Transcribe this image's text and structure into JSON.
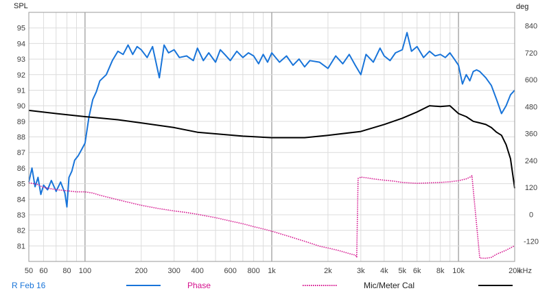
{
  "chart_data": {
    "type": "line",
    "title": "",
    "y_left_label": "SPL",
    "y_right_label": "deg",
    "x_unit_label": "kHz",
    "x_scale": "log",
    "xlim": [
      50,
      20000
    ],
    "ylim_left": [
      80,
      96
    ],
    "ylim_right": [
      -210,
      900
    ],
    "grid": true,
    "x_ticks": [
      {
        "value": 50,
        "label": "50"
      },
      {
        "value": 60,
        "label": "60"
      },
      {
        "value": 80,
        "label": "80"
      },
      {
        "value": 100,
        "label": "100"
      },
      {
        "value": 200,
        "label": "200"
      },
      {
        "value": 300,
        "label": "300"
      },
      {
        "value": 400,
        "label": "400"
      },
      {
        "value": 600,
        "label": "600"
      },
      {
        "value": 800,
        "label": "800"
      },
      {
        "value": 1000,
        "label": "1k"
      },
      {
        "value": 2000,
        "label": "2k"
      },
      {
        "value": 3000,
        "label": "3k"
      },
      {
        "value": 4000,
        "label": "4k"
      },
      {
        "value": 5000,
        "label": "5k"
      },
      {
        "value": 6000,
        "label": "6k"
      },
      {
        "value": 8000,
        "label": "8k"
      },
      {
        "value": 10000,
        "label": "10k"
      },
      {
        "value": 20000,
        "label": "20k"
      }
    ],
    "y_left_ticks": [
      81,
      82,
      83,
      84,
      85,
      86,
      87,
      88,
      89,
      90,
      91,
      92,
      93,
      94,
      95
    ],
    "y_right_ticks": [
      -120,
      0,
      120,
      240,
      360,
      480,
      600,
      720,
      840
    ],
    "legend_position": "bottom",
    "series": [
      {
        "name": "R Feb 16",
        "axis": "left",
        "color": "#1874d9",
        "style": "solid",
        "x": [
          50,
          52,
          54,
          56,
          58,
          60,
          63,
          66,
          70,
          74,
          78,
          80,
          82,
          85,
          88,
          92,
          96,
          100,
          105,
          110,
          115,
          120,
          130,
          140,
          150,
          160,
          170,
          180,
          190,
          200,
          215,
          230,
          250,
          265,
          280,
          300,
          320,
          350,
          380,
          400,
          430,
          460,
          500,
          530,
          560,
          600,
          650,
          700,
          750,
          800,
          850,
          900,
          950,
          1000,
          1100,
          1200,
          1300,
          1400,
          1500,
          1600,
          1800,
          2000,
          2200,
          2400,
          2600,
          2800,
          3000,
          3200,
          3500,
          3800,
          4000,
          4300,
          4600,
          5000,
          5300,
          5600,
          6000,
          6500,
          7000,
          7500,
          8000,
          8500,
          9000,
          9500,
          10000,
          10500,
          11000,
          11500,
          12000,
          12500,
          13000,
          14000,
          15000,
          16000,
          17000,
          18000,
          19000,
          20000
        ],
        "values": [
          85.1,
          86.0,
          84.8,
          85.4,
          84.3,
          84.9,
          84.6,
          85.2,
          84.5,
          85.1,
          84.4,
          83.5,
          85.4,
          85.8,
          86.5,
          86.8,
          87.2,
          87.6,
          89.3,
          90.4,
          90.9,
          91.6,
          92.0,
          92.9,
          93.5,
          93.3,
          93.9,
          93.3,
          93.8,
          93.6,
          93.1,
          93.8,
          91.8,
          93.9,
          93.4,
          93.6,
          93.1,
          93.2,
          92.9,
          93.7,
          92.9,
          93.4,
          92.8,
          93.6,
          93.3,
          92.9,
          93.5,
          93.1,
          93.4,
          93.2,
          92.7,
          93.3,
          92.8,
          93.4,
          92.8,
          93.2,
          92.6,
          93.0,
          92.5,
          92.9,
          92.8,
          92.4,
          93.2,
          92.7,
          93.3,
          92.6,
          92.0,
          93.3,
          92.8,
          93.7,
          93.2,
          92.9,
          93.4,
          93.6,
          94.7,
          93.5,
          93.8,
          93.1,
          93.5,
          93.2,
          93.3,
          93.1,
          93.4,
          93.0,
          92.6,
          91.4,
          92.0,
          91.6,
          92.2,
          92.3,
          92.2,
          91.8,
          91.3,
          90.4,
          89.5,
          90.0,
          90.7,
          91.0
        ]
      },
      {
        "name": "Phase",
        "axis": "right",
        "color": "#d40f8c",
        "style": "dotted",
        "x": [
          50,
          55,
          60,
          70,
          80,
          90,
          100,
          110,
          120,
          150,
          200,
          250,
          300,
          350,
          400,
          500,
          600,
          700,
          800,
          900,
          1000,
          1200,
          1500,
          1800,
          2000,
          2300,
          2600,
          2800,
          2850,
          2900,
          2950,
          3000,
          3050,
          3200,
          3500,
          4000,
          4500,
          5000,
          6000,
          7000,
          8000,
          9000,
          10000,
          11000,
          11700,
          11800,
          13000,
          14000,
          15000,
          16000,
          18000,
          20000
        ],
        "values": [
          140,
          135,
          120,
          110,
          105,
          100,
          100,
          95,
          85,
          65,
          40,
          25,
          15,
          8,
          0,
          -15,
          -30,
          -42,
          -55,
          -65,
          -75,
          -95,
          -120,
          -142,
          -150,
          -162,
          -175,
          -182,
          -190,
          160,
          162,
          166,
          165,
          163,
          158,
          152,
          148,
          142,
          138,
          140,
          142,
          145,
          150,
          158,
          168,
          172,
          -195,
          -196,
          -192,
          -178,
          -160,
          -140
        ]
      },
      {
        "name": "Mic/Meter Cal",
        "axis": "left",
        "color": "#000000",
        "style": "solid",
        "x": [
          50,
          70,
          100,
          150,
          200,
          300,
          400,
          500,
          700,
          1000,
          1500,
          2000,
          3000,
          4000,
          5000,
          6000,
          7000,
          8000,
          9000,
          10000,
          11000,
          12000,
          13000,
          14000,
          15000,
          16000,
          17000,
          18000,
          19000,
          20000
        ],
        "values": [
          89.7,
          89.5,
          89.3,
          89.1,
          88.9,
          88.6,
          88.3,
          88.2,
          88.05,
          87.95,
          87.95,
          88.1,
          88.35,
          88.8,
          89.2,
          89.6,
          90.0,
          89.95,
          90.0,
          89.5,
          89.3,
          89.0,
          88.9,
          88.8,
          88.6,
          88.3,
          88.1,
          87.5,
          86.6,
          84.7
        ]
      }
    ]
  }
}
